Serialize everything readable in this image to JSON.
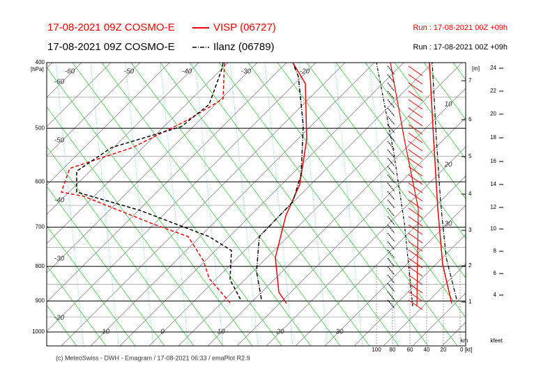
{
  "header": {
    "line1_left": "17-08-2021 09Z COSMO-E",
    "line1_legend": "VISP (06727)",
    "line1_right": "Run : 17-08-2021 00Z +09h",
    "line2_left": "17-08-2021 09Z COSMO-E",
    "line2_legend": "Ilanz (06789)",
    "line2_right": "Run : 17-08-2021 00Z +09h"
  },
  "pressure_axis": {
    "unit": "[hPa]",
    "ticks": [
      400,
      500,
      600,
      700,
      800,
      900,
      1000
    ]
  },
  "temperature_labels": {
    "top": [
      "-60",
      "-50",
      "-40",
      "-30",
      "-20"
    ],
    "left": [
      "-60",
      "-50",
      "-40",
      "-30",
      "-20"
    ],
    "bottom": [
      "-10",
      "0",
      "10",
      "20",
      "30"
    ],
    "right": [
      "10",
      "20",
      "30"
    ]
  },
  "height_axis": {
    "unit": "[m]",
    "labels": [
      "7",
      "6",
      "5",
      "4",
      "3",
      "2",
      "1"
    ]
  },
  "kfeet_axis": {
    "unit": "kfeet",
    "labels": [
      "24",
      "22",
      "20",
      "18",
      "16",
      "14",
      "12",
      "10",
      "8",
      "6",
      "4"
    ]
  },
  "wind_axis": {
    "unit": "km",
    "labels": [
      "100",
      "80",
      "60",
      "40",
      "20",
      "0 [kt]"
    ]
  },
  "footer": "(c) MeteoSwiss - DWH - Emagram / 17-08-2021 06:33 / emaPlot R2.9"
}
